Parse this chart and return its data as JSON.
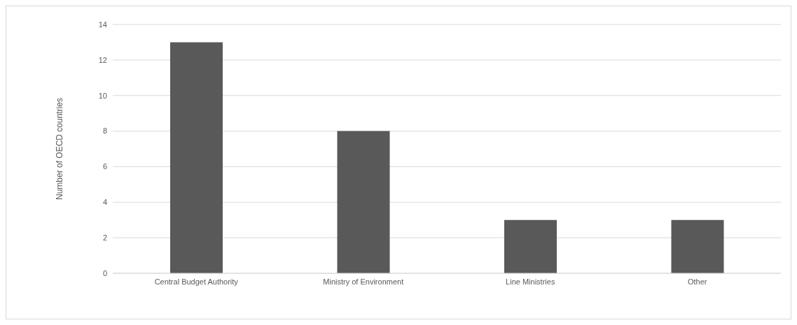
{
  "chart_data": {
    "type": "bar",
    "ylabel": "Number of OECD countries",
    "categories": [
      "Central Budget Authority",
      "Ministry of Environment",
      "Line Ministries",
      "Other"
    ],
    "values": [
      13,
      8,
      3,
      3
    ],
    "color": "#595959",
    "ylim": [
      0,
      14
    ],
    "yticks": [
      0,
      2,
      4,
      6,
      8,
      10,
      12,
      14
    ],
    "grid": "y"
  }
}
